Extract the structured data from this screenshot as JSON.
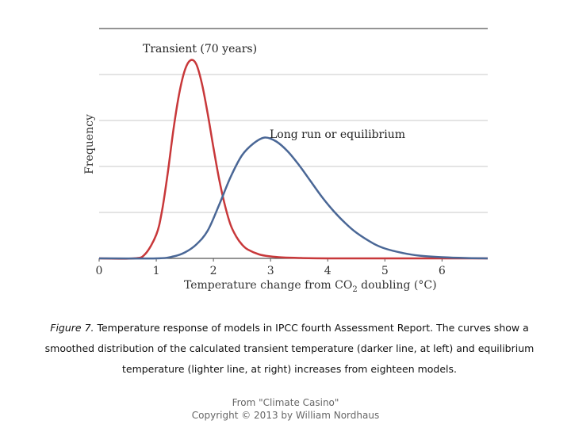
{
  "chart_data": {
    "type": "line",
    "title": "",
    "xlabel": "Temperature change from CO2 doubling (°C)",
    "xlabel_parts": {
      "before": "Temperature change from CO",
      "sub": "2",
      "after": " doubling (°C)"
    },
    "ylabel": "Frequency",
    "xlim": [
      0,
      6.8
    ],
    "ylim": [
      0,
      1
    ],
    "xticks": [
      "0",
      "1",
      "2",
      "3",
      "4",
      "5",
      "6"
    ],
    "grid": "horizontal",
    "series": [
      {
        "name": "Transient (70 years)",
        "color": "#c8383a",
        "x": [
          0.6,
          0.8,
          1.0,
          1.1,
          1.2,
          1.3,
          1.4,
          1.5,
          1.6,
          1.7,
          1.8,
          1.9,
          2.0,
          2.1,
          2.2,
          2.3,
          2.4,
          2.5,
          2.6,
          2.8,
          3.0,
          3.2,
          3.5,
          4.0,
          5.0,
          6.8
        ],
        "values": [
          0.0,
          0.02,
          0.12,
          0.24,
          0.43,
          0.65,
          0.83,
          0.95,
          1.0,
          0.98,
          0.88,
          0.73,
          0.56,
          0.4,
          0.27,
          0.17,
          0.11,
          0.07,
          0.045,
          0.02,
          0.01,
          0.005,
          0.002,
          0.0,
          0.0,
          0.0
        ]
      },
      {
        "name": "Long run or equilibrium",
        "color": "#4a6796",
        "x": [
          0.0,
          1.0,
          1.3,
          1.5,
          1.7,
          1.9,
          2.1,
          2.3,
          2.5,
          2.7,
          2.9,
          3.1,
          3.3,
          3.5,
          3.7,
          3.9,
          4.1,
          4.3,
          4.5,
          4.8,
          5.0,
          5.3,
          5.6,
          6.0,
          6.4,
          6.8
        ],
        "values": [
          0.0,
          0.0,
          0.01,
          0.03,
          0.07,
          0.14,
          0.27,
          0.41,
          0.52,
          0.58,
          0.61,
          0.59,
          0.54,
          0.47,
          0.39,
          0.31,
          0.24,
          0.18,
          0.13,
          0.075,
          0.05,
          0.028,
          0.014,
          0.006,
          0.002,
          0.0
        ]
      }
    ],
    "annotations": [
      "Transient (70 years)",
      "Long run or equilibrium"
    ]
  },
  "caption": {
    "figure_label": "Figure 7.",
    "text": " Temperature response of models in IPCC fourth Assessment Report. The curves show a smoothed distribution of the calculated transient temperature (darker line, at left) and equilibrium temperature (lighter line, at right) increases from eighteen models."
  },
  "source": {
    "line1": "From \"Climate Casino\"",
    "line2": "Copyright © 2013 by William Nordhaus"
  }
}
